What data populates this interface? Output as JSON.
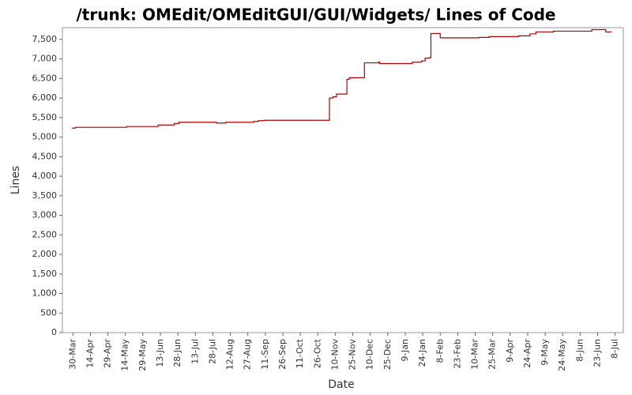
{
  "chart_data": {
    "type": "line",
    "step": true,
    "title": "/trunk: OMEdit/OMEditGUI/GUI/Widgets/ Lines of Code",
    "x_label": "Date",
    "y_label": "Lines",
    "xlim": [
      "21-Mar",
      "15-Jul"
    ],
    "xticks": [
      "30-Mar",
      "14-Apr",
      "29-Apr",
      "14-May",
      "29-May",
      "13-Jun",
      "28-Jun",
      "13-Jul",
      "28-Jul",
      "12-Aug",
      "27-Aug",
      "11-Sep",
      "26-Sep",
      "11-Oct",
      "26-Oct",
      "10-Nov",
      "25-Nov",
      "10-Dec",
      "25-Dec",
      "9-Jan",
      "24-Jan",
      "8-Feb",
      "23-Feb",
      "10-Mar",
      "25-Mar",
      "9-Apr",
      "24-Apr",
      "9-May",
      "24-May",
      "8-Jun",
      "23-Jun",
      "8-Jul"
    ],
    "ylim": [
      0,
      7800
    ],
    "yticks": [
      0,
      500,
      {
        "value": 1000,
        "label": "1,000"
      },
      {
        "value": 1500,
        "label": "1,500"
      },
      {
        "value": 2000,
        "label": "2,000"
      },
      {
        "value": 2500,
        "label": "2,500"
      },
      {
        "value": 3000,
        "label": "3,000"
      },
      {
        "value": 3500,
        "label": "3,500"
      },
      {
        "value": 4000,
        "label": "4,000"
      },
      {
        "value": 4500,
        "label": "4,500"
      },
      {
        "value": 5000,
        "label": "5,000"
      },
      {
        "value": 5500,
        "label": "5,500"
      },
      {
        "value": 6000,
        "label": "6,000"
      },
      {
        "value": 6500,
        "label": "6,500"
      },
      {
        "value": 7000,
        "label": "7,000"
      },
      {
        "value": 7500,
        "label": "7,500"
      }
    ],
    "x": [
      "29-Mar",
      "1-Apr",
      "15-May",
      "11-Jun",
      "25-Jun",
      "29-Jun",
      "31-Jul",
      "8-Aug",
      "1-Sep",
      "5-Sep",
      "10-Sep",
      "5-Nov",
      "8-Nov",
      "11-Nov",
      "20-Nov",
      "22-Nov",
      "5-Dec",
      "17-Dec",
      "18-Dec",
      "15-Jan",
      "23-Jan",
      "26-Jan",
      "30-Jan",
      "31-Jan",
      "8-Feb",
      "13-Mar",
      "22-Mar",
      "16-Apr",
      "26-Apr",
      "1-May",
      "16-May",
      "18-Jun",
      "30-Jun",
      "5-Jul"
    ],
    "series": [
      {
        "name": "Lines",
        "color": "#b00000",
        "values": [
          5230,
          5250,
          5270,
          5310,
          5350,
          5380,
          5360,
          5380,
          5400,
          5420,
          5430,
          6000,
          6030,
          6100,
          6480,
          6520,
          6900,
          6920,
          6880,
          6920,
          6950,
          7020,
          7040,
          7650,
          7540,
          7550,
          7570,
          7590,
          7640,
          7690,
          7710,
          7750,
          7690,
          7690
        ]
      }
    ]
  }
}
